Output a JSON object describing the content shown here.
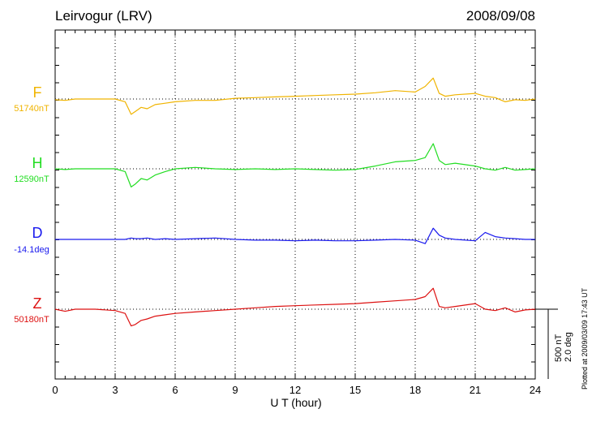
{
  "header": {
    "station": "Leirvogur (LRV)",
    "date": "2008/09/08"
  },
  "footer": {
    "plotted_note": "Plotted at 2009/03/09 17:43 UT"
  },
  "scale_bar": {
    "label_nt": "500 nT",
    "label_deg": "2.0 deg"
  },
  "chart_data": {
    "type": "line",
    "xlabel": "U T (hour)",
    "xlim": [
      0,
      24
    ],
    "xticks": [
      0,
      3,
      6,
      9,
      12,
      15,
      18,
      21,
      24
    ],
    "grid": true,
    "series": [
      {
        "name": "F",
        "baseline": "51740nT",
        "color": "#f0b400",
        "x": [
          0,
          0.5,
          1,
          2,
          3,
          3.5,
          3.8,
          4.0,
          4.3,
          4.6,
          5.0,
          5.5,
          6,
          7,
          8,
          9,
          10,
          11,
          12,
          13,
          14,
          15,
          16,
          17,
          18,
          18.5,
          18.9,
          19.2,
          19.5,
          20,
          21,
          21.5,
          22,
          22.5,
          23,
          23.5,
          24
        ],
        "values": [
          -5,
          -10,
          0,
          0,
          0,
          -20,
          -110,
          -90,
          -60,
          -70,
          -40,
          -30,
          -20,
          -10,
          -10,
          5,
          10,
          15,
          20,
          25,
          30,
          35,
          45,
          60,
          50,
          90,
          150,
          40,
          20,
          30,
          40,
          20,
          10,
          -20,
          -5,
          -10,
          0
        ]
      },
      {
        "name": "H",
        "baseline": "12590nT",
        "color": "#22dd22",
        "x": [
          0,
          0.5,
          1,
          2,
          3,
          3.5,
          3.8,
          4.0,
          4.3,
          4.6,
          5.0,
          5.5,
          6,
          7,
          8,
          9,
          10,
          11,
          12,
          13,
          14,
          15,
          16,
          17,
          18,
          18.5,
          18.9,
          19.2,
          19.5,
          20,
          21,
          21.5,
          22,
          22.5,
          23,
          23.5,
          24
        ],
        "values": [
          0,
          -5,
          0,
          0,
          0,
          -20,
          -130,
          -110,
          -70,
          -80,
          -45,
          -20,
          0,
          10,
          0,
          -5,
          0,
          -5,
          0,
          -5,
          -10,
          -5,
          20,
          50,
          60,
          80,
          180,
          60,
          30,
          40,
          20,
          0,
          -10,
          10,
          -10,
          -5,
          0
        ]
      },
      {
        "name": "D",
        "baseline": "-14.1deg",
        "color": "#1a1aee",
        "x": [
          0,
          0.5,
          1,
          2,
          3,
          3.5,
          3.8,
          4.0,
          4.3,
          4.6,
          5.0,
          5.5,
          6,
          7,
          8,
          9,
          10,
          11,
          12,
          13,
          14,
          15,
          16,
          17,
          18,
          18.5,
          18.9,
          19.2,
          19.5,
          20,
          21,
          21.5,
          22,
          22.5,
          23,
          23.5,
          24
        ],
        "values": [
          0,
          0,
          0,
          0,
          0,
          0,
          10,
          5,
          5,
          10,
          0,
          5,
          0,
          5,
          10,
          0,
          -5,
          -5,
          -10,
          -5,
          -10,
          -10,
          -5,
          0,
          -5,
          -30,
          80,
          30,
          10,
          0,
          -10,
          50,
          20,
          10,
          5,
          0,
          0
        ]
      },
      {
        "name": "Z",
        "baseline": "50180nT",
        "color": "#dd1111",
        "x": [
          0,
          0.5,
          1,
          2,
          3,
          3.5,
          3.8,
          4.0,
          4.3,
          4.6,
          5.0,
          5.5,
          6,
          7,
          8,
          9,
          10,
          11,
          12,
          13,
          14,
          15,
          16,
          17,
          18,
          18.5,
          18.9,
          19.2,
          19.5,
          20,
          21,
          21.5,
          22,
          22.5,
          23,
          23.5,
          24
        ],
        "values": [
          0,
          -15,
          0,
          0,
          -10,
          -30,
          -120,
          -110,
          -80,
          -70,
          -50,
          -40,
          -30,
          -20,
          -10,
          0,
          10,
          20,
          25,
          30,
          35,
          40,
          50,
          60,
          70,
          90,
          150,
          20,
          10,
          20,
          40,
          0,
          -10,
          10,
          -20,
          -5,
          0
        ]
      }
    ]
  }
}
